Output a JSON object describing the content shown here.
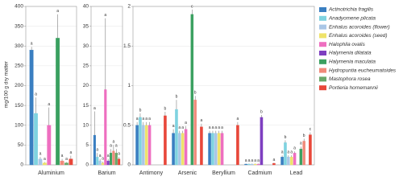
{
  "chart_data": [
    {
      "type": "bar",
      "ylabel": "mg/100 g dry matter",
      "categories": [
        "Aluminium"
      ],
      "ylim": [
        0,
        400
      ],
      "yticks": [
        0,
        50,
        100,
        150,
        200,
        250,
        300,
        350,
        400
      ],
      "grid": true,
      "series": [
        {
          "name": "Actinotrichia fragilis",
          "color": "#3a7fc1",
          "values": [
            290
          ],
          "errors": [
            8
          ],
          "letters": [
            "a"
          ]
        },
        {
          "name": "Anadyomene plicata",
          "color": "#7fd3e0",
          "values": [
            130
          ],
          "errors": [
            40
          ],
          "letters": [
            "a"
          ]
        },
        {
          "name": "Enhalus acoroides (flower)",
          "color": "#a9c6e6",
          "values": [
            15
          ],
          "errors": [
            5
          ],
          "letters": [
            "a"
          ]
        },
        {
          "name": "Enhalus acoroides (seed)",
          "color": "#efe36a",
          "values": [
            5
          ],
          "errors": [
            2
          ],
          "letters": [
            "a"
          ]
        },
        {
          "name": "Halophila ovalis",
          "color": "#ee6fc0",
          "values": [
            100
          ],
          "errors": [
            45
          ],
          "letters": [
            "a"
          ]
        },
        {
          "name": "Halymenia dilatata",
          "color": "#7e3fc0",
          "values": [
            null
          ],
          "errors": [
            null
          ],
          "letters": [
            null
          ]
        },
        {
          "name": "Halymenia maculata",
          "color": "#3aa060",
          "values": [
            320
          ],
          "errors": [
            60
          ],
          "letters": [
            "a"
          ]
        },
        {
          "name": "Hydropuntia eucheumatoides",
          "color": "#f08a7a",
          "values": [
            10
          ],
          "errors": [
            5
          ],
          "letters": [
            "a"
          ]
        },
        {
          "name": "Mastophora rosea",
          "color": "#6aa86a",
          "values": [
            5
          ],
          "errors": [
            2
          ],
          "letters": [
            "a"
          ]
        },
        {
          "name": "Portieria hornemannii",
          "color": "#e8473a",
          "values": [
            15
          ],
          "errors": [
            8
          ],
          "letters": [
            "a"
          ]
        }
      ]
    },
    {
      "type": "bar",
      "categories": [
        "Barium"
      ],
      "ylim": [
        0,
        40
      ],
      "yticks": [
        0,
        5,
        10,
        15,
        20,
        25,
        30,
        35,
        40
      ],
      "grid": true,
      "series": [
        {
          "name": "Actinotrichia fragilis",
          "color": "#3a7fc1",
          "values": [
            7.5
          ],
          "errors": [
            6
          ],
          "letters": [
            "a"
          ]
        },
        {
          "name": "Anadyomene plicata",
          "color": "#7fd3e0",
          "values": [
            2
          ],
          "errors": [
            1
          ],
          "letters": [
            "a"
          ]
        },
        {
          "name": "Enhalus acoroides (flower)",
          "color": "#a9c6e6",
          "values": [
            1
          ],
          "errors": [
            0.5
          ],
          "letters": [
            "a"
          ]
        },
        {
          "name": "Enhalus acoroides (seed)",
          "color": "#efe36a",
          "values": [
            0.5
          ],
          "errors": [
            0.3
          ],
          "letters": [
            "a"
          ]
        },
        {
          "name": "Halophila ovalis",
          "color": "#ee6fc0",
          "values": [
            19
          ],
          "errors": [
            18
          ],
          "letters": [
            "a"
          ]
        },
        {
          "name": "Halymenia dilatata",
          "color": "#7e3fc0",
          "values": [
            1
          ],
          "errors": [
            0.5
          ],
          "letters": [
            "a"
          ]
        },
        {
          "name": "Halymenia maculata",
          "color": "#3aa060",
          "values": [
            3
          ],
          "errors": [
            1
          ],
          "letters": [
            "a"
          ]
        },
        {
          "name": "Hydropuntia eucheumatoides",
          "color": "#f08a7a",
          "values": [
            3.5
          ],
          "errors": [
            1.5
          ],
          "letters": [
            "a"
          ]
        },
        {
          "name": "Mastophora rosea",
          "color": "#6aa86a",
          "values": [
            3
          ],
          "errors": [
            1
          ],
          "letters": [
            "a"
          ]
        },
        {
          "name": "Portieria hornemannii",
          "color": "#e8473a",
          "values": [
            1.5
          ],
          "errors": [
            0.5
          ],
          "letters": [
            "a"
          ]
        }
      ]
    },
    {
      "type": "bar",
      "categories": [
        "Antimony",
        "Arsenic",
        "Beryllium",
        "Cadmium",
        "Lead"
      ],
      "ylim": [
        0,
        2
      ],
      "yticks": [
        0,
        0.5,
        1,
        1.5,
        2
      ],
      "grid": true,
      "series": [
        {
          "name": "Actinotrichia fragilis",
          "color": "#3a7fc1",
          "values": [
            0.5,
            0.4,
            0.4,
            0.01,
            0.1
          ],
          "errors": [
            0.04,
            0.05,
            0.03,
            0.005,
            0.02
          ],
          "letters": [
            "a",
            "a",
            "a",
            "a",
            "a"
          ]
        },
        {
          "name": "Anadyomene plicata",
          "color": "#7fd3e0",
          "values": [
            0.6,
            0.7,
            0.4,
            0.01,
            0.28
          ],
          "errors": [
            0.05,
            0.12,
            0.03,
            0.005,
            0.03
          ],
          "letters": [
            "b",
            "b",
            "a",
            "a",
            "b"
          ]
        },
        {
          "name": "Enhalus acoroides (flower)",
          "color": "#a9c6e6",
          "values": [
            0.5,
            0.4,
            0.4,
            0.01,
            0.1
          ],
          "errors": [
            0.04,
            0.03,
            0.03,
            0.005,
            0.02
          ],
          "letters": [
            "a",
            "a",
            "a",
            "a",
            "a"
          ]
        },
        {
          "name": "Enhalus acoroides (seed)",
          "color": "#efe36a",
          "values": [
            0.5,
            0.4,
            0.4,
            0.01,
            0.1
          ],
          "errors": [
            0.04,
            0.03,
            0.03,
            0.005,
            0.02
          ],
          "letters": [
            "a",
            "a",
            "a",
            "a",
            "a"
          ]
        },
        {
          "name": "Halophila ovalis",
          "color": "#ee6fc0",
          "values": [
            0.5,
            0.45,
            0.4,
            0.01,
            0.15
          ],
          "errors": [
            0.04,
            0.04,
            0.03,
            0.005,
            0.02
          ],
          "letters": [
            "a",
            "a",
            "a",
            "a",
            "a"
          ]
        },
        {
          "name": "Halymenia dilatata",
          "color": "#7e3fc0",
          "values": [
            null,
            null,
            null,
            0.6,
            null
          ],
          "errors": [
            null,
            null,
            null,
            0.03,
            null
          ],
          "letters": [
            null,
            null,
            null,
            "b",
            null
          ]
        },
        {
          "name": "Halymenia maculata",
          "color": "#3aa060",
          "values": [
            null,
            1.9,
            null,
            null,
            0.2
          ],
          "errors": [
            null,
            0.06,
            null,
            null,
            0.03
          ],
          "letters": [
            null,
            "c",
            null,
            null,
            "a"
          ]
        },
        {
          "name": "Hydropuntia eucheumatoides",
          "color": "#f08a7a",
          "values": [
            null,
            0.82,
            null,
            null,
            0.3
          ],
          "errors": [
            null,
            0.05,
            null,
            null,
            0.03
          ],
          "letters": [
            null,
            "b",
            null,
            null,
            "b"
          ]
        },
        {
          "name": "Mastophora rosea",
          "color": "#6aa86a",
          "values": [
            null,
            null,
            null,
            null,
            null
          ],
          "errors": [
            null,
            null,
            null,
            null,
            null
          ],
          "letters": [
            null,
            null,
            null,
            null,
            null
          ]
        },
        {
          "name": "Portieria hornemannii",
          "color": "#e8473a",
          "values": [
            0.62,
            0.48,
            0.5,
            0.02,
            0.38
          ],
          "errors": [
            0.05,
            0.04,
            0.04,
            0.005,
            0.03
          ],
          "letters": [
            "b",
            "a",
            "a",
            "a",
            "c"
          ]
        }
      ]
    }
  ]
}
